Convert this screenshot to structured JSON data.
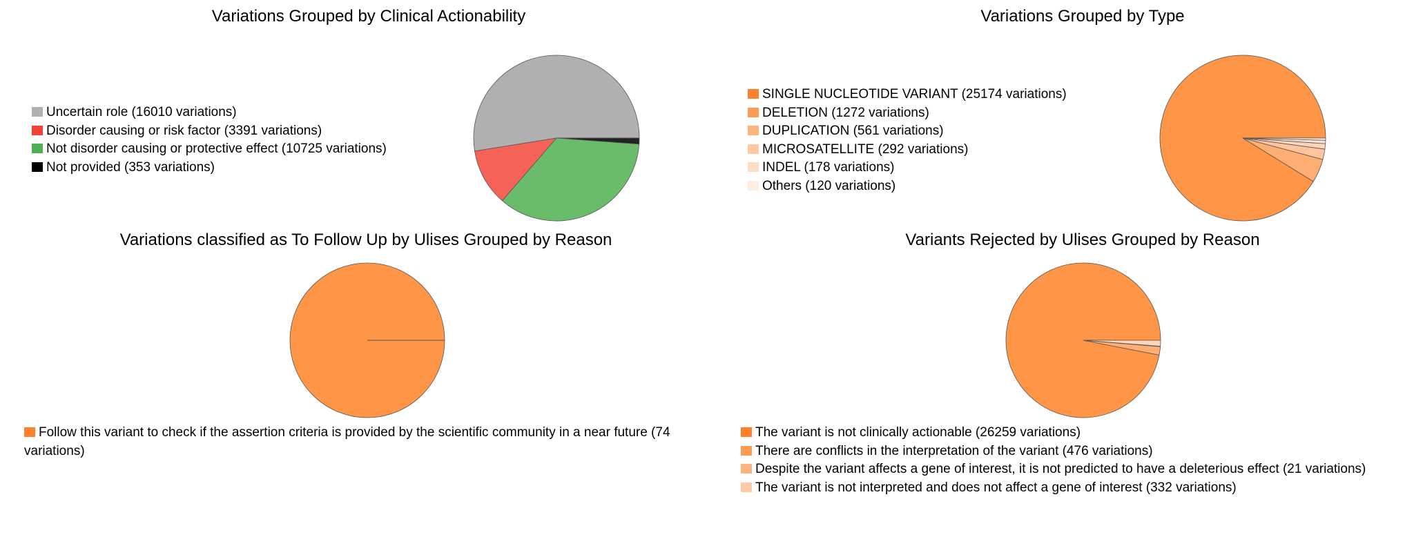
{
  "chart_data": [
    {
      "type": "pie",
      "title": "Variations Grouped by Clinical Actionability",
      "legend_position": "left",
      "slices": [
        {
          "label": "Uncertain role (16010 variations)",
          "value": 16010,
          "color": "#b0b0b0"
        },
        {
          "label": "Disorder causing or risk factor (3391 variations)",
          "value": 3391,
          "color": "#f56258"
        },
        {
          "label": "Not disorder causing or protective effect (10725 variations)",
          "value": 10725,
          "color": "#68bc6a"
        },
        {
          "label": "Not provided (353 variations)",
          "value": 353,
          "color": "#222222"
        }
      ],
      "legend_colors": [
        "#b0b0b0",
        "#f44336",
        "#4caf50",
        "#000000"
      ]
    },
    {
      "type": "pie",
      "title": "Variations Grouped by Type",
      "legend_position": "left",
      "slices": [
        {
          "label": "SINGLE NUCLEOTIDE VARIANT (25174 variations)",
          "value": 25174,
          "color": "#ff9547"
        },
        {
          "label": "DELETION (1272 variations)",
          "value": 1272,
          "color": "#ffae73"
        },
        {
          "label": "DUPLICATION (561 variations)",
          "value": 561,
          "color": "#ffc39d"
        },
        {
          "label": "MICROSATELLITE (292 variations)",
          "value": 292,
          "color": "#ffd5b9"
        },
        {
          "label": "INDEL (178 variations)",
          "value": 178,
          "color": "#ffe3d1"
        },
        {
          "label": "Others (120 variations)",
          "value": 120,
          "color": "#fff0e6"
        }
      ],
      "legend_colors": [
        "#ff7f2a",
        "#ff9a52",
        "#ffb47e",
        "#ffc9a4",
        "#ffdcc4",
        "#ffeee2"
      ]
    },
    {
      "type": "pie",
      "title": "Variations classified as To Follow Up by Ulises Grouped by Reason",
      "legend_position": "bottom",
      "slices": [
        {
          "label": "Follow this variant to check if the assertion criteria is provided by the scientific community in a near future (74 variations)",
          "value": 74,
          "color": "#ff9547"
        }
      ],
      "legend_colors": [
        "#ff7f2a"
      ]
    },
    {
      "type": "pie",
      "title": "Variants Rejected by Ulises Grouped by Reason",
      "legend_position": "bottom",
      "slices": [
        {
          "label": "The variant is not clinically actionable (26259 variations)",
          "value": 26259,
          "color": "#ff9547"
        },
        {
          "label": "There are conflicts in the interpretation of the variant (476 variations)",
          "value": 476,
          "color": "#ffae73"
        },
        {
          "label": "Despite the variant affects a gene of interest, it is not predicted to have a deleterious effect (21 variations)",
          "value": 21,
          "color": "#ffc39d"
        },
        {
          "label": "The variant is not interpreted and does not affect a gene of interest (332 variations)",
          "value": 332,
          "color": "#ffd5b9"
        }
      ],
      "legend_colors": [
        "#ff7f2a",
        "#ff9a52",
        "#ffb47e",
        "#ffc9a4"
      ]
    }
  ]
}
